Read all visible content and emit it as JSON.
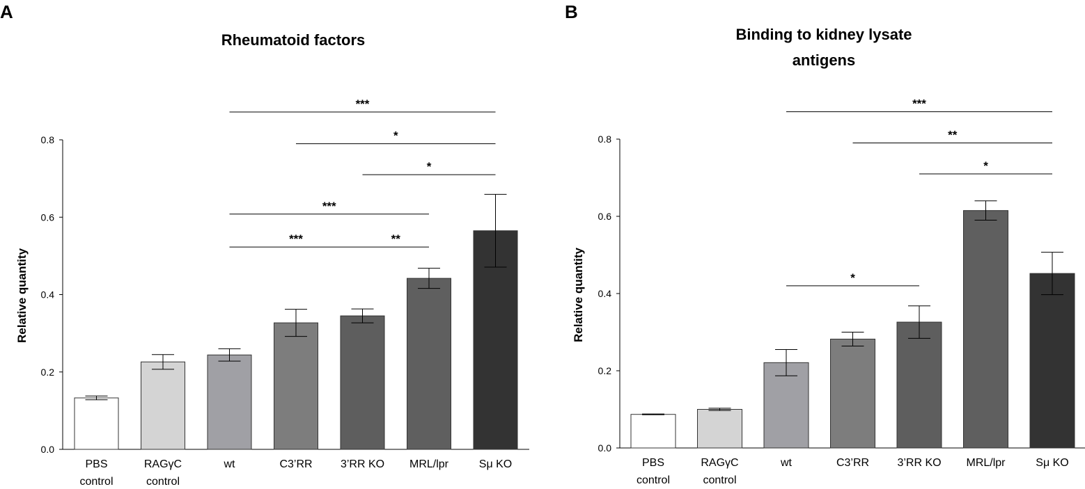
{
  "chart_data": [
    {
      "panel": "A",
      "type": "bar",
      "title": [
        "Rheumatoid factors"
      ],
      "ylabel": "Relative quantity",
      "xlabel": "",
      "ylim": [
        0,
        0.8
      ],
      "yticks": [
        "0.0",
        "0.2",
        "0.4",
        "0.6",
        "0.8"
      ],
      "categories": [
        [
          "PBS",
          "control"
        ],
        [
          "RAGγC",
          "control"
        ],
        [
          "wt"
        ],
        [
          "C3’RR"
        ],
        [
          "3’RR KO"
        ],
        [
          "MRL/lpr"
        ],
        [
          "Sμ KO"
        ]
      ],
      "values": [
        0.133,
        0.226,
        0.244,
        0.327,
        0.345,
        0.442,
        0.565
      ],
      "errors": [
        0.005,
        0.019,
        0.016,
        0.035,
        0.018,
        0.026,
        0.094
      ],
      "colors": [
        "#ffffff",
        "#d4d4d4",
        "#a0a0a5",
        "#7d7d7d",
        "#5e5e5e",
        "#5f5f5f",
        "#333333"
      ],
      "significance": [
        {
          "from": 2,
          "to": 6,
          "y": 0.872,
          "label": "***"
        },
        {
          "from": 3,
          "to": 6,
          "y": 0.79,
          "label": "*"
        },
        {
          "from": 4,
          "to": 6,
          "y": 0.71,
          "label": "*"
        },
        {
          "from": 2,
          "to": 5,
          "y": 0.608,
          "label": "***"
        },
        {
          "from": 2,
          "to": 4,
          "y": 0.523,
          "label": "***"
        },
        {
          "from": 4,
          "to": 5,
          "y": 0.523,
          "label": "**"
        }
      ]
    },
    {
      "panel": "B",
      "type": "bar",
      "title": [
        "Binding to kidney lysate",
        "antigens"
      ],
      "ylabel": "Relative quantity",
      "xlabel": "",
      "ylim": [
        0,
        0.8
      ],
      "yticks": [
        "0.0",
        "0.2",
        "0.4",
        "0.6",
        "0.8"
      ],
      "categories": [
        [
          "PBS",
          "control"
        ],
        [
          "RAGγC",
          "control"
        ],
        [
          "wt"
        ],
        [
          "C3’RR"
        ],
        [
          "3’RR KO"
        ],
        [
          "MRL/lpr"
        ],
        [
          "Sμ KO"
        ]
      ],
      "values": [
        0.087,
        0.1,
        0.221,
        0.282,
        0.326,
        0.615,
        0.452
      ],
      "errors": [
        0.001,
        0.003,
        0.034,
        0.018,
        0.042,
        0.025,
        0.055
      ],
      "colors": [
        "#ffffff",
        "#d4d4d4",
        "#a0a0a5",
        "#7d7d7d",
        "#5e5e5e",
        "#5f5f5f",
        "#333333"
      ],
      "significance": [
        {
          "from": 2,
          "to": 6,
          "y": 0.871,
          "label": "***"
        },
        {
          "from": 3,
          "to": 6,
          "y": 0.79,
          "label": "**"
        },
        {
          "from": 4,
          "to": 6,
          "y": 0.71,
          "label": "*"
        },
        {
          "from": 2,
          "to": 4,
          "y": 0.42,
          "label": "*"
        }
      ]
    }
  ]
}
